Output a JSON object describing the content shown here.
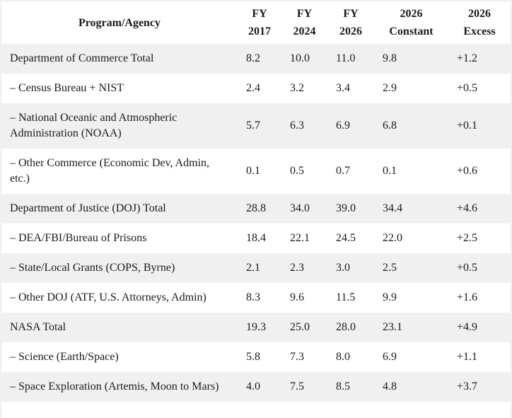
{
  "colors": {
    "page_background": "#ffffff",
    "stripe": "#f0f0f0",
    "text": "#1a1a1a",
    "outer_border": "#f0f0f0"
  },
  "chart_data": {
    "type": "table",
    "columns": [
      "Program/Agency",
      "FY 2017",
      "FY 2024",
      "FY 2026",
      "2026 Constant",
      "2026 Excess"
    ],
    "rows": [
      {
        "program": "Department of Commerce Total",
        "values": [
          "8.2",
          "10.0",
          "11.0",
          "9.8",
          "+1.2"
        ]
      },
      {
        "program": "– Census Bureau + NIST",
        "values": [
          "2.4",
          "3.2",
          "3.4",
          "2.9",
          "+0.5"
        ]
      },
      {
        "program": "– National Oceanic and Atmospheric Administration (NOAA)",
        "values": [
          "5.7",
          "6.3",
          "6.9",
          "6.8",
          "+0.1"
        ]
      },
      {
        "program": "– Other Commerce (Economic Dev, Admin, etc.)",
        "values": [
          "0.1",
          "0.5",
          "0.7",
          "0.1",
          "+0.6"
        ]
      },
      {
        "program": "Department of Justice (DOJ) Total",
        "values": [
          "28.8",
          "34.0",
          "39.0",
          "34.4",
          "+4.6"
        ]
      },
      {
        "program": "– DEA/FBI/Bureau of Prisons",
        "values": [
          "18.4",
          "22.1",
          "24.5",
          "22.0",
          "+2.5"
        ]
      },
      {
        "program": "– State/Local Grants (COPS, Byrne)",
        "values": [
          "2.1",
          "2.3",
          "3.0",
          "2.5",
          "+0.5"
        ]
      },
      {
        "program": "– Other DOJ (ATF, U.S. Attorneys, Admin)",
        "values": [
          "8.3",
          "9.6",
          "11.5",
          "9.9",
          "+1.6"
        ]
      },
      {
        "program": "NASA Total",
        "values": [
          "19.3",
          "25.0",
          "28.0",
          "23.1",
          "+4.9"
        ]
      },
      {
        "program": "– Science (Earth/Space)",
        "values": [
          "5.8",
          "7.3",
          "8.0",
          "6.9",
          "+1.1"
        ]
      },
      {
        "program": "– Space Exploration (Artemis, Moon to Mars)",
        "values": [
          "4.0",
          "7.5",
          "8.5",
          "4.8",
          "+3.7"
        ]
      }
    ]
  }
}
